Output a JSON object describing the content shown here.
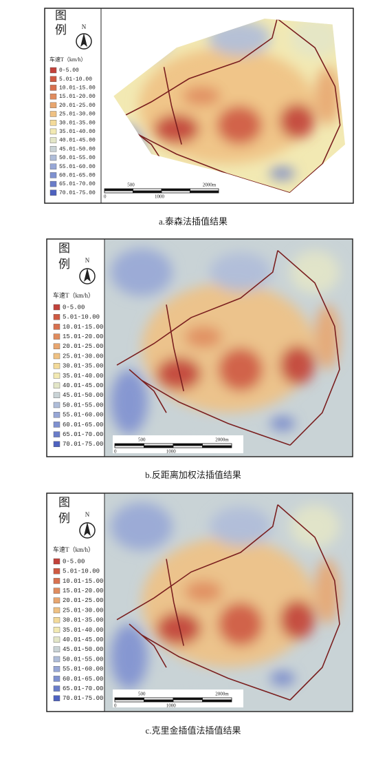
{
  "legend_title": [
    "图",
    "例"
  ],
  "north": "N",
  "unit_label": "车速T（km/h）",
  "legend": [
    {
      "label": "0-5.00",
      "color": "#c2413a"
    },
    {
      "label": "5.01-10.00",
      "color": "#cf5a42"
    },
    {
      "label": "10.01-15.00",
      "color": "#d8714f"
    },
    {
      "label": "15.01-20.00",
      "color": "#e08c5e"
    },
    {
      "label": "20.01-25.00",
      "color": "#e8a670"
    },
    {
      "label": "25.01-30.00",
      "color": "#efc184"
    },
    {
      "label": "30.01-35.00",
      "color": "#f3da9a"
    },
    {
      "label": "35.01-40.00",
      "color": "#f2e9b3"
    },
    {
      "label": "40.01-45.00",
      "color": "#e3e6c8"
    },
    {
      "label": "45.01-50.00",
      "color": "#c9d3d6"
    },
    {
      "label": "50.01-55.00",
      "color": "#afbdd9"
    },
    {
      "label": "55.01-60.00",
      "color": "#97a7d6"
    },
    {
      "label": "60.01-65.00",
      "color": "#7f91d0"
    },
    {
      "label": "65.01-70.00",
      "color": "#6a7dc9"
    },
    {
      "label": "70.01-75.00",
      "color": "#4e62c0"
    }
  ],
  "scale": {
    "top": [
      "500",
      "2000m"
    ],
    "bottom": [
      "0",
      "1000"
    ]
  },
  "panels": [
    {
      "caption": "a.泰森法插值结果"
    },
    {
      "caption": "b.反距离加权法插值结果"
    },
    {
      "caption": "c.克里金插值法插值结果"
    }
  ]
}
